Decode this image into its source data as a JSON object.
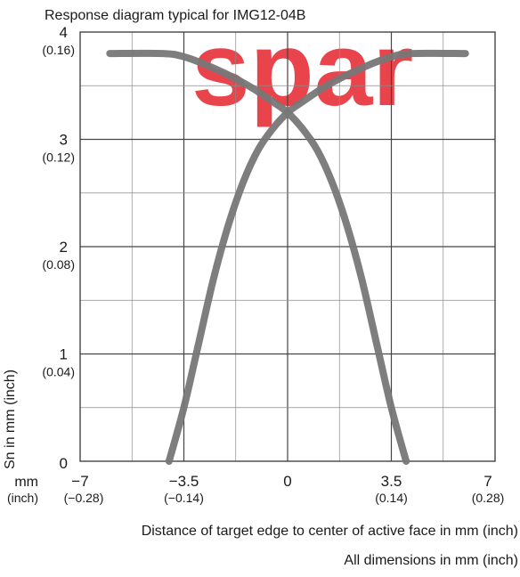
{
  "watermark": {
    "text": "spar",
    "color": "#e6242d"
  },
  "colors": {
    "curve": "#777777",
    "grid": "#444444",
    "text": "#1a1a1a",
    "watermark": "#e6242d"
  },
  "chart_data": {
    "type": "line",
    "title": "Response diagram typical for IMG12-04B",
    "xlabel": "Distance of target edge to center of active face in mm (inch)",
    "ylabel": "Sn in mm (inch)",
    "footnote": "All dimensions in mm (inch)",
    "xlim": [
      -7,
      7
    ],
    "ylim": [
      0,
      4
    ],
    "grid": true,
    "x_unit_labels": [
      "mm",
      "(inch)"
    ],
    "x_ticks": [
      {
        "value": -7,
        "mm": "−7",
        "inch": "(−0.28)"
      },
      {
        "value": -3.5,
        "mm": "−3.5",
        "inch": "(−0.14)"
      },
      {
        "value": 0,
        "mm": "0",
        "inch": ""
      },
      {
        "value": 3.5,
        "mm": "3.5",
        "inch": "(0.14)"
      },
      {
        "value": 7,
        "mm": "7",
        "inch": "(0.28)"
      }
    ],
    "y_ticks": [
      {
        "value": 0,
        "mm": "0",
        "inch": ""
      },
      {
        "value": 1,
        "mm": "1",
        "inch": "(0.04)"
      },
      {
        "value": 2,
        "mm": "2",
        "inch": "(0.08)"
      },
      {
        "value": 3,
        "mm": "3",
        "inch": "(0.12)"
      },
      {
        "value": 4,
        "mm": "4",
        "inch": "(0.16)"
      }
    ],
    "series": [
      {
        "x": [
          -6,
          -4.2,
          -3.5,
          -2.8,
          -2.0,
          -1.2,
          -0.5,
          0,
          0.5,
          1.0,
          1.5,
          2.0,
          2.5,
          3.0,
          3.5,
          4.0
        ],
        "y": [
          3.8,
          3.8,
          3.77,
          3.7,
          3.6,
          3.48,
          3.35,
          3.25,
          3.1,
          2.9,
          2.6,
          2.2,
          1.7,
          1.1,
          0.5,
          0
        ]
      },
      {
        "x": [
          -4.0,
          -3.5,
          -3.0,
          -2.5,
          -2.0,
          -1.5,
          -1.0,
          -0.5,
          0,
          0.5,
          1.2,
          2.0,
          2.8,
          3.5,
          4.2,
          6.0
        ],
        "y": [
          0,
          0.5,
          1.1,
          1.7,
          2.2,
          2.6,
          2.9,
          3.1,
          3.25,
          3.35,
          3.48,
          3.6,
          3.7,
          3.77,
          3.8,
          3.8
        ]
      }
    ]
  }
}
